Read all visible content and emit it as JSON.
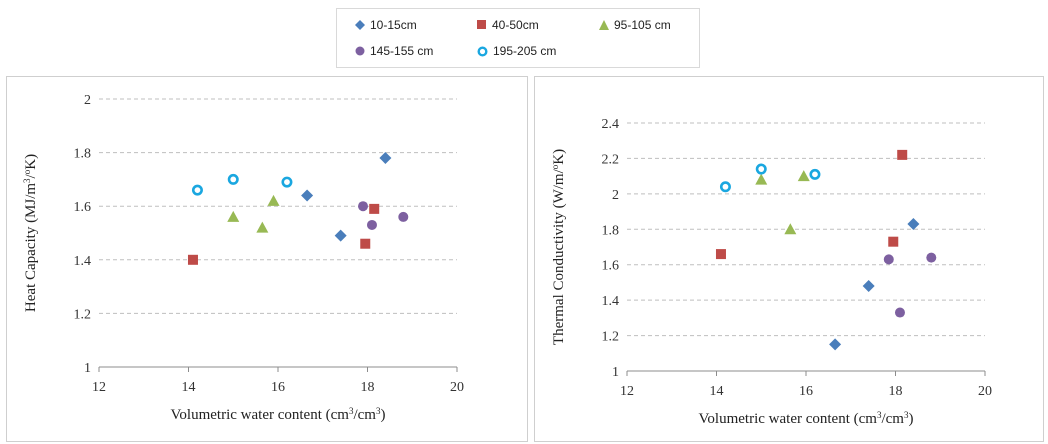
{
  "legend": [
    {
      "name": "10-15cm",
      "marker": "diamond",
      "color": "#4a7ebb"
    },
    {
      "name": "40-50cm",
      "marker": "square",
      "color": "#be4b48"
    },
    {
      "name": "95-105 cm",
      "marker": "triangle",
      "color": "#98b954"
    },
    {
      "name": "145-155 cm",
      "marker": "circle",
      "color": "#7d60a0"
    },
    {
      "name": "195-205 cm",
      "marker": "ring",
      "color": "#1aa7e0"
    }
  ],
  "chart_data": [
    {
      "type": "scatter",
      "title": "",
      "xlabel": "Volumetric  water content (cm³/cm³)",
      "ylabel": "Heat Capacity  (MJ/m³/°K)",
      "xlim": [
        12,
        20
      ],
      "ylim": [
        1,
        2
      ],
      "xticks": [
        "12",
        "14",
        "16",
        "18",
        "20"
      ],
      "yticks": [
        "1",
        "1.2",
        "1.4",
        "1.6",
        "1.8",
        "2"
      ],
      "grid": true,
      "series": [
        {
          "name": "10-15cm",
          "points": [
            [
              16.65,
              1.64
            ],
            [
              17.4,
              1.49
            ],
            [
              18.4,
              1.78
            ]
          ]
        },
        {
          "name": "40-50cm",
          "points": [
            [
              14.1,
              1.4
            ],
            [
              17.95,
              1.46
            ],
            [
              18.15,
              1.59
            ]
          ]
        },
        {
          "name": "95-105 cm",
          "points": [
            [
              15.0,
              1.56
            ],
            [
              15.65,
              1.52
            ],
            [
              15.9,
              1.62
            ]
          ]
        },
        {
          "name": "145-155 cm",
          "points": [
            [
              17.9,
              1.6
            ],
            [
              18.1,
              1.53
            ],
            [
              18.8,
              1.56
            ]
          ]
        },
        {
          "name": "195-205 cm",
          "points": [
            [
              14.2,
              1.66
            ],
            [
              15.0,
              1.7
            ],
            [
              16.2,
              1.69
            ]
          ]
        }
      ]
    },
    {
      "type": "scatter",
      "title": "",
      "xlabel": "Volumetric  water content (cm³/cm³)",
      "ylabel": "Thermal  Conductivity  (W/m/°K)",
      "xlim": [
        12,
        20
      ],
      "ylim": [
        1,
        2.4
      ],
      "xticks": [
        "12",
        "14",
        "16",
        "18",
        "20"
      ],
      "yticks": [
        "1",
        "1.2",
        "1.4",
        "1.6",
        "1.8",
        "2",
        "2.2",
        "2.4"
      ],
      "grid": true,
      "series": [
        {
          "name": "10-15cm",
          "points": [
            [
              16.65,
              1.15
            ],
            [
              17.4,
              1.48
            ],
            [
              18.4,
              1.83
            ]
          ]
        },
        {
          "name": "40-50cm",
          "points": [
            [
              14.1,
              1.66
            ],
            [
              17.95,
              1.73
            ],
            [
              18.15,
              2.22
            ]
          ]
        },
        {
          "name": "95-105 cm",
          "points": [
            [
              15.0,
              2.08
            ],
            [
              15.65,
              1.8
            ],
            [
              15.95,
              2.1
            ]
          ]
        },
        {
          "name": "145-155 cm",
          "points": [
            [
              17.85,
              1.63
            ],
            [
              18.1,
              1.33
            ],
            [
              18.8,
              1.64
            ]
          ]
        },
        {
          "name": "195-205 cm",
          "points": [
            [
              14.2,
              2.04
            ],
            [
              15.0,
              2.14
            ],
            [
              16.2,
              2.11
            ]
          ]
        }
      ]
    }
  ]
}
